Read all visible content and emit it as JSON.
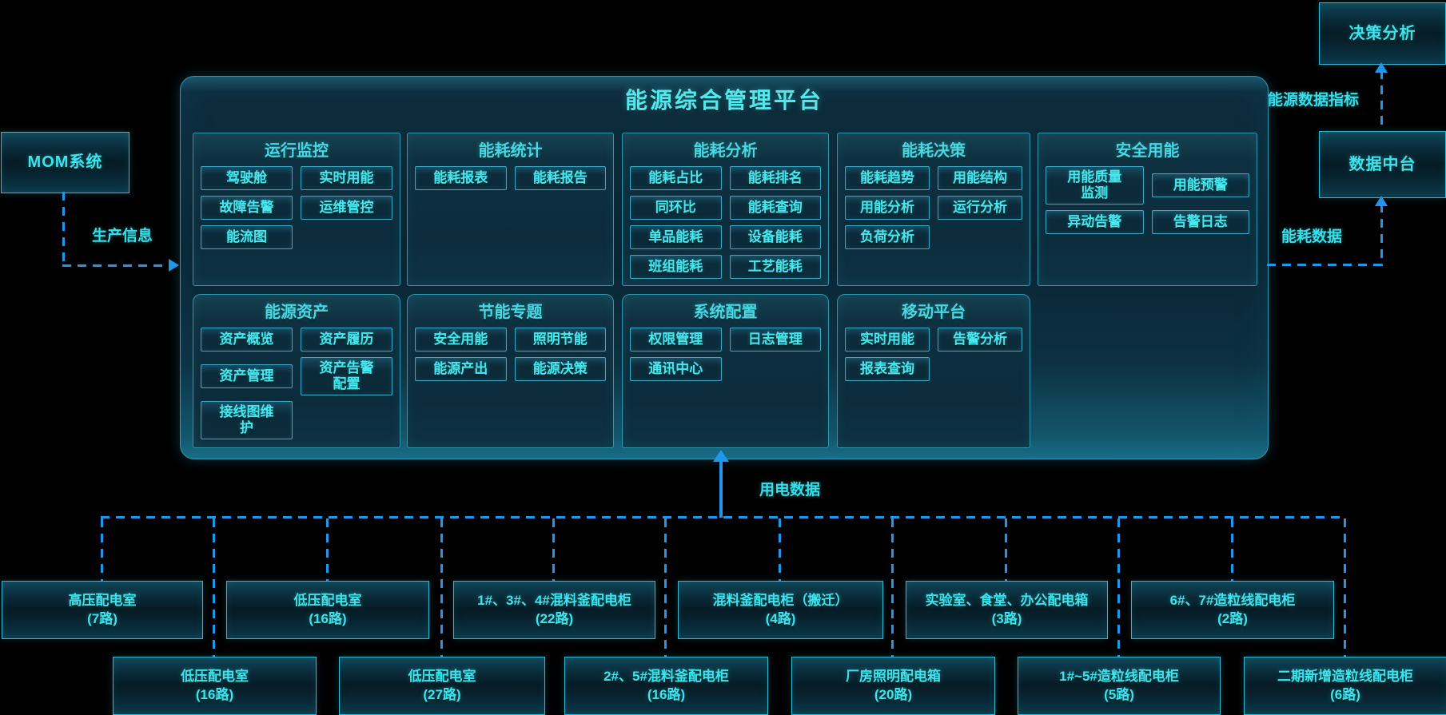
{
  "platform": {
    "title": "能源综合管理平台",
    "rows": [
      [
        {
          "title": "运行监控",
          "buttons": [
            "驾驶舱",
            "实时用能",
            "故障告警",
            "运维管控",
            "能流图"
          ]
        },
        {
          "title": "能耗统计",
          "buttons": [
            "能耗报表",
            "能耗报告"
          ]
        },
        {
          "title": "能耗分析",
          "buttons": [
            "能耗占比",
            "能耗排名",
            "同环比",
            "能耗查询",
            "单品能耗",
            "设备能耗",
            "班组能耗",
            "工艺能耗"
          ]
        },
        {
          "title": "能耗决策",
          "buttons": [
            "能耗趋势",
            "用能结构",
            "用能分析",
            "运行分析",
            "负荷分析"
          ]
        },
        {
          "title": "安全用能",
          "buttons": [
            "用能质量\n监测",
            "用能预警",
            "异动告警",
            "告警日志"
          ]
        }
      ],
      [
        {
          "title": "能源资产",
          "buttons": [
            "资产概览",
            "资产履历",
            "资产管理",
            "资产告警\n配置",
            "接线图维\n护"
          ]
        },
        {
          "title": "节能专题",
          "buttons": [
            "安全用能",
            "照明节能",
            "能源产出",
            "能源决策"
          ]
        },
        {
          "title": "系统配置",
          "buttons": [
            "权限管理",
            "日志管理",
            "通讯中心"
          ]
        },
        {
          "title": "移动平台",
          "buttons": [
            "实时用能",
            "告警分析",
            "报表查询"
          ]
        }
      ]
    ]
  },
  "external_systems": {
    "mom": "MOM系统",
    "decision_analysis": "决策分析",
    "data_middle_platform": "数据中台"
  },
  "flow_labels": {
    "production_info": "生产信息",
    "energy_data_kpi": "能源数据指标",
    "energy_consumption_data": "能耗数据",
    "electricity_data": "用电数据"
  },
  "distribution_boxes": {
    "top_row": [
      "高压配电室\n(7路)",
      "低压配电室\n(16路)",
      "1#、3#、4#混料釜配电柜\n(22路)",
      "混料釜配电柜（搬迁）\n(4路)",
      "实验室、食堂、办公配电箱\n(3路)",
      "6#、7#造粒线配电柜\n(2路)"
    ],
    "bottom_row": [
      "低压配电室\n(16路)",
      "低压配电室\n(27路)",
      "2#、5#混料釜配电柜\n(16路)",
      "厂房照明配电箱\n(20路)",
      "1#~5#造粒线配电柜\n(5路)",
      "二期新增造粒线配电柜\n(6路)"
    ]
  },
  "colors": {
    "accent_cyan": "#45e6ee",
    "line_blue": "#1e97ec",
    "border_cyan": "#38c3da"
  }
}
